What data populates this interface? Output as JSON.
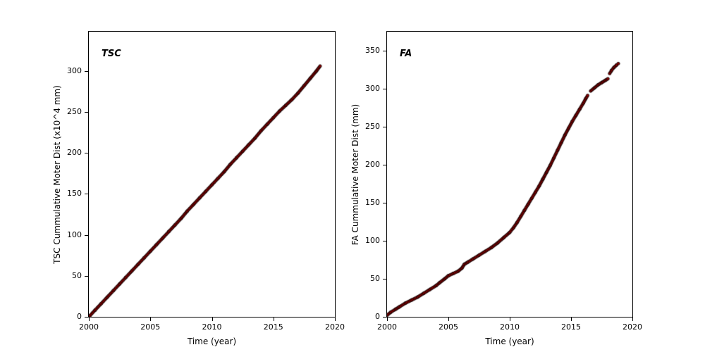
{
  "chart_data": [
    {
      "type": "scatter",
      "title": "TSC",
      "xlabel": "Time (year)",
      "ylabel": "TSC Cummulative Moter Dist (x10^4 mm)",
      "xlim": [
        2000,
        2020
      ],
      "ylim": [
        0,
        348
      ],
      "xticks": [
        2000,
        2005,
        2010,
        2015,
        2020
      ],
      "yticks": [
        0,
        50,
        100,
        150,
        200,
        250,
        300
      ],
      "grid": false,
      "legend": "none",
      "marker": {
        "color": "#8B0000",
        "edge": "#000000",
        "radius": 2.1
      },
      "series": [
        {
          "name": "TSC cumulative motor distance",
          "segments": [
            [
              [
                2000.0,
                0
              ],
              [
                2000.5,
                8
              ],
              [
                2001.0,
                16
              ],
              [
                2001.5,
                24
              ],
              [
                2002.0,
                32
              ],
              [
                2002.5,
                40
              ],
              [
                2003.0,
                48
              ],
              [
                2003.5,
                56
              ],
              [
                2004.0,
                64
              ],
              [
                2004.5,
                72
              ],
              [
                2005.0,
                80
              ],
              [
                2005.5,
                88
              ],
              [
                2006.0,
                96
              ],
              [
                2006.5,
                104
              ],
              [
                2007.0,
                112
              ],
              [
                2007.5,
                120
              ],
              [
                2008.0,
                129
              ],
              [
                2008.5,
                137
              ],
              [
                2009.0,
                145
              ],
              [
                2009.5,
                153
              ],
              [
                2010.0,
                161
              ],
              [
                2010.5,
                169
              ],
              [
                2011.0,
                177
              ],
              [
                2011.5,
                186
              ],
              [
                2012.0,
                194
              ],
              [
                2012.5,
                202
              ],
              [
                2013.0,
                210
              ],
              [
                2013.5,
                218
              ],
              [
                2014.0,
                227
              ],
              [
                2014.5,
                235
              ],
              [
                2015.0,
                243
              ],
              [
                2015.5,
                251
              ],
              [
                2016.0,
                258
              ],
              [
                2016.5,
                265
              ],
              [
                2017.0,
                273
              ],
              [
                2017.5,
                282
              ],
              [
                2018.0,
                291
              ],
              [
                2018.5,
                300
              ],
              [
                2018.8,
                306
              ]
            ]
          ]
        }
      ]
    },
    {
      "type": "scatter",
      "title": "FA",
      "xlabel": "Time (year)",
      "ylabel": "FA Cummulative Moter Dist (mm)",
      "xlim": [
        2000,
        2020
      ],
      "ylim": [
        0,
        375
      ],
      "xticks": [
        2000,
        2005,
        2010,
        2015,
        2020
      ],
      "yticks": [
        0,
        50,
        100,
        150,
        200,
        250,
        300,
        350
      ],
      "grid": false,
      "legend": "none",
      "marker": {
        "color": "#8B0000",
        "edge": "#000000",
        "radius": 2.1
      },
      "series": [
        {
          "name": "FA cumulative motor distance",
          "segments": [
            [
              [
                2000.0,
                2
              ],
              [
                2000.3,
                6
              ],
              [
                2000.7,
                10
              ],
              [
                2001.0,
                13
              ],
              [
                2001.5,
                18
              ],
              [
                2002.0,
                22
              ],
              [
                2002.5,
                26
              ],
              [
                2003.0,
                31
              ],
              [
                2003.5,
                36
              ],
              [
                2004.0,
                41
              ],
              [
                2004.3,
                45
              ],
              [
                2004.7,
                50
              ],
              [
                2005.0,
                54
              ],
              [
                2005.4,
                57
              ],
              [
                2005.8,
                60
              ],
              [
                2006.1,
                64
              ],
              [
                2006.3,
                69
              ],
              [
                2006.6,
                72
              ],
              [
                2007.0,
                76
              ],
              [
                2007.5,
                81
              ],
              [
                2008.0,
                86
              ],
              [
                2008.5,
                91
              ],
              [
                2009.0,
                97
              ],
              [
                2009.5,
                104
              ],
              [
                2010.0,
                111
              ],
              [
                2010.3,
                117
              ],
              [
                2010.6,
                124
              ],
              [
                2010.9,
                132
              ],
              [
                2011.2,
                140
              ],
              [
                2011.5,
                148
              ],
              [
                2011.8,
                156
              ],
              [
                2012.1,
                164
              ],
              [
                2012.4,
                172
              ],
              [
                2012.7,
                181
              ],
              [
                2013.0,
                190
              ],
              [
                2013.3,
                199
              ],
              [
                2013.6,
                209
              ],
              [
                2013.9,
                219
              ],
              [
                2014.2,
                229
              ],
              [
                2014.5,
                239
              ],
              [
                2014.8,
                248
              ],
              [
                2015.1,
                257
              ],
              [
                2015.4,
                265
              ],
              [
                2015.7,
                273
              ],
              [
                2016.0,
                281
              ],
              [
                2016.2,
                287
              ],
              [
                2016.35,
                291
              ]
            ],
            [
              [
                2016.6,
                297
              ],
              [
                2016.9,
                301
              ],
              [
                2017.2,
                305
              ],
              [
                2017.5,
                308
              ],
              [
                2017.8,
                311
              ],
              [
                2018.0,
                313
              ]
            ],
            [
              [
                2018.15,
                320
              ],
              [
                2018.3,
                324
              ],
              [
                2018.5,
                328
              ],
              [
                2018.7,
                331
              ],
              [
                2018.85,
                333
              ]
            ]
          ]
        }
      ]
    }
  ]
}
